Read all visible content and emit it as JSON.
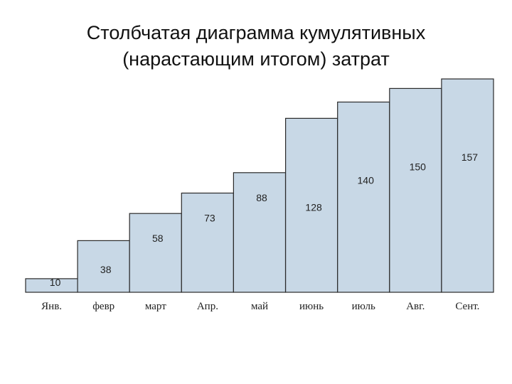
{
  "title_line1": "Столбчатая диаграмма кумулятивных",
  "title_line2": "(нарастающим итогом) затрат",
  "bar_fill": "#c8d8e6",
  "bar_stroke": "#2a2a2a",
  "chart_data": {
    "type": "bar",
    "categories": [
      "Янв.",
      "февр",
      "март",
      "Апр.",
      "май",
      "июнь",
      "июль",
      "Авг.",
      "Сент."
    ],
    "values": [
      10,
      38,
      58,
      73,
      88,
      128,
      140,
      150,
      157
    ],
    "title": "Столбчатая диаграмма кумулятивных (нарастающим итогом) затрат",
    "xlabel": "",
    "ylabel": "",
    "ylim": [
      0,
      157
    ],
    "grid": false,
    "legend": "none",
    "cumulative": true
  }
}
